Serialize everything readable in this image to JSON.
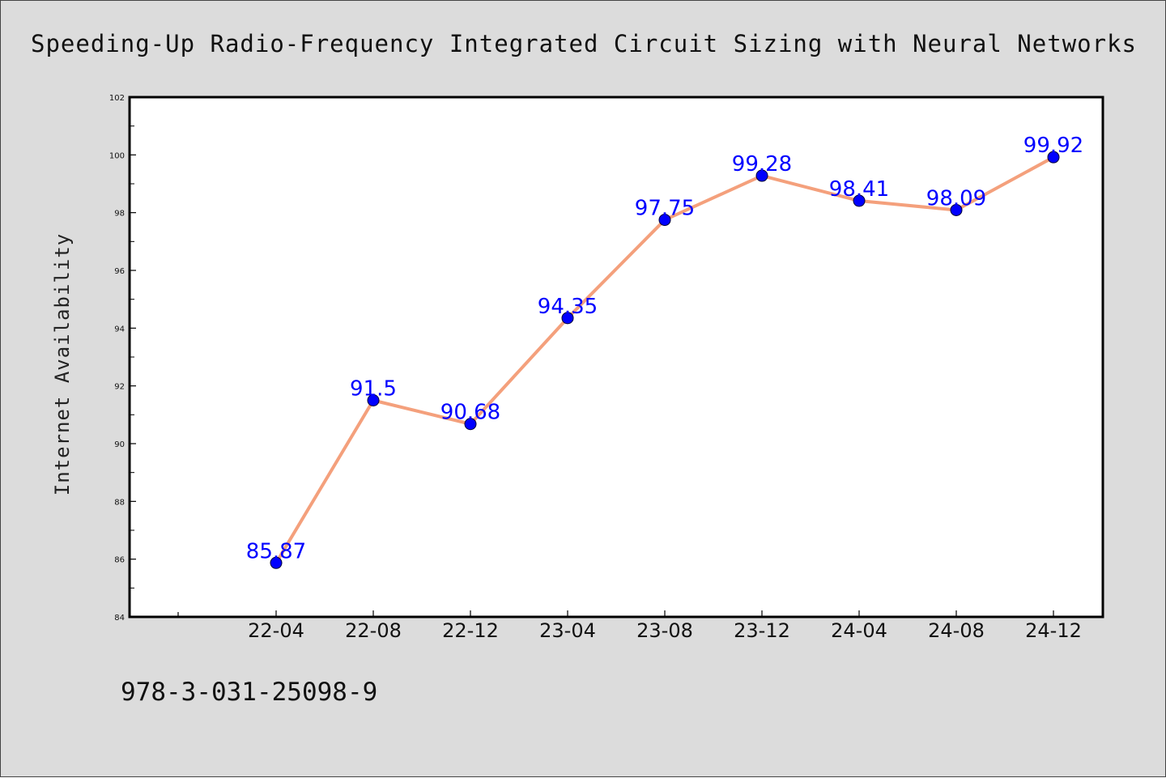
{
  "chart_data": {
    "type": "line",
    "title": "Speeding-Up Radio-Frequency Integrated Circuit Sizing with Neural Networks",
    "xlabel": "",
    "ylabel": "Internet Availability",
    "categories": [
      "22-04",
      "22-08",
      "22-12",
      "23-04",
      "23-08",
      "23-12",
      "24-04",
      "24-08",
      "24-12"
    ],
    "series": [
      {
        "values": [
          85.87,
          91.5,
          90.68,
          94.35,
          97.75,
          99.28,
          98.41,
          98.09,
          99.92
        ],
        "data_labels": [
          "85.87",
          "91.5",
          "90.68",
          "94.35",
          "97.75",
          "99.28",
          "98.41",
          "98.09",
          "99.92"
        ]
      }
    ],
    "ylim": [
      84,
      102
    ],
    "yticks": [
      84,
      86,
      88,
      90,
      92,
      94,
      96,
      98,
      100,
      102
    ],
    "grid": false,
    "legend": "none",
    "colors": {
      "line": "#f4a07c",
      "marker": "#0000ff",
      "data_label": "#0000ff",
      "background": "#dcdcdc",
      "plot_background": "#ffffff"
    }
  },
  "footer": {
    "isbn": "978-3-031-25098-9"
  }
}
